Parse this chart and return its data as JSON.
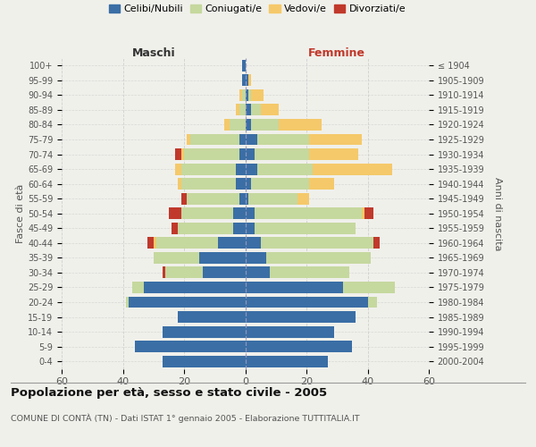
{
  "age_groups": [
    "0-4",
    "5-9",
    "10-14",
    "15-19",
    "20-24",
    "25-29",
    "30-34",
    "35-39",
    "40-44",
    "45-49",
    "50-54",
    "55-59",
    "60-64",
    "65-69",
    "70-74",
    "75-79",
    "80-84",
    "85-89",
    "90-94",
    "95-99",
    "100+"
  ],
  "birth_years": [
    "2000-2004",
    "1995-1999",
    "1990-1994",
    "1985-1989",
    "1980-1984",
    "1975-1979",
    "1970-1974",
    "1965-1969",
    "1960-1964",
    "1955-1959",
    "1950-1954",
    "1945-1949",
    "1940-1944",
    "1935-1939",
    "1930-1934",
    "1925-1929",
    "1920-1924",
    "1915-1919",
    "1910-1914",
    "1905-1909",
    "≤ 1904"
  ],
  "males_celibi": [
    27,
    36,
    27,
    22,
    38,
    33,
    14,
    15,
    9,
    4,
    4,
    2,
    3,
    3,
    2,
    2,
    0,
    0,
    0,
    1,
    1
  ],
  "males_coniugati": [
    0,
    0,
    0,
    0,
    1,
    4,
    12,
    15,
    20,
    18,
    17,
    17,
    18,
    18,
    18,
    16,
    5,
    2,
    1,
    0,
    0
  ],
  "males_vedovi": [
    0,
    0,
    0,
    0,
    0,
    0,
    0,
    0,
    1,
    0,
    0,
    0,
    1,
    2,
    1,
    1,
    2,
    1,
    1,
    0,
    0
  ],
  "males_divorziati": [
    0,
    0,
    0,
    0,
    0,
    0,
    1,
    0,
    2,
    2,
    4,
    2,
    0,
    0,
    2,
    0,
    0,
    0,
    0,
    0,
    0
  ],
  "females_celibi": [
    27,
    35,
    29,
    36,
    40,
    32,
    8,
    7,
    5,
    3,
    3,
    1,
    2,
    4,
    3,
    4,
    2,
    2,
    1,
    1,
    0
  ],
  "females_coniugati": [
    0,
    0,
    0,
    0,
    3,
    17,
    26,
    34,
    37,
    33,
    35,
    16,
    19,
    18,
    18,
    17,
    9,
    3,
    1,
    0,
    0
  ],
  "females_vedovi": [
    0,
    0,
    0,
    0,
    0,
    0,
    0,
    0,
    0,
    0,
    1,
    4,
    8,
    26,
    16,
    17,
    14,
    6,
    4,
    1,
    0
  ],
  "females_divorziati": [
    0,
    0,
    0,
    0,
    0,
    0,
    0,
    0,
    2,
    0,
    3,
    0,
    0,
    0,
    0,
    0,
    0,
    0,
    0,
    0,
    0
  ],
  "colors": {
    "celibi": "#3a6ea5",
    "coniugati": "#c5d89e",
    "vedovi": "#f5c96a",
    "divorziati": "#c0392b"
  },
  "title": "Popolazione per età, sesso e stato civile - 2005",
  "subtitle": "COMUNE DI CONTÀ (TN) - Dati ISTAT 1° gennaio 2005 - Elaborazione TUTTITALIA.IT",
  "xlabel_left": "Maschi",
  "xlabel_right": "Femmine",
  "ylabel_left": "Fasce di età",
  "ylabel_right": "Anni di nascita",
  "xlim": 60,
  "background_color": "#f0f0eb",
  "grid_color": "#cccccc"
}
